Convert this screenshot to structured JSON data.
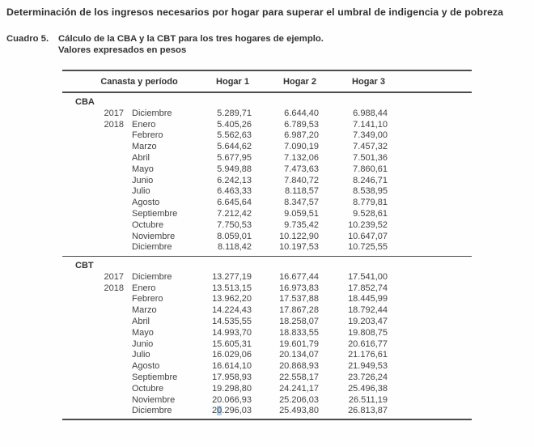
{
  "page_title": "Determinación de los ingresos necesarios por hogar para superar el umbral de indigencia y de pobreza",
  "caption": {
    "label": "Cuadro 5.",
    "title": "Cálculo de la CBA y la CBT para los tres hogares de ejemplo.",
    "subtitle": "Valores expresados en pesos"
  },
  "colors": {
    "selection_highlight": "#b3d2ec",
    "rule_color": "#4c4c4c"
  },
  "table": {
    "columns": [
      "Canasta y período",
      "Hogar 1",
      "Hogar 2",
      "Hogar 3"
    ],
    "sections": [
      {
        "name": "CBA",
        "rows": [
          {
            "year": "2017",
            "month": "Diciembre",
            "values": [
              "5.289,71",
              "6.644,40",
              "6.988,44"
            ]
          },
          {
            "year": "2018",
            "month": "Enero",
            "values": [
              "5.405,26",
              "6.789,53",
              "7.141,10"
            ]
          },
          {
            "year": "",
            "month": "Febrero",
            "values": [
              "5.562,63",
              "6.987,20",
              "7.349,00"
            ]
          },
          {
            "year": "",
            "month": "Marzo",
            "values": [
              "5.644,62",
              "7.090,19",
              "7.457,32"
            ]
          },
          {
            "year": "",
            "month": "Abril",
            "values": [
              "5.677,95",
              "7.132,06",
              "7.501,36"
            ]
          },
          {
            "year": "",
            "month": "Mayo",
            "values": [
              "5.949,88",
              "7.473,63",
              "7.860,61"
            ]
          },
          {
            "year": "",
            "month": "Junio",
            "values": [
              "6.242,13",
              "7.840,72",
              "8.246,71"
            ]
          },
          {
            "year": "",
            "month": "Julio",
            "values": [
              "6.463,33",
              "8.118,57",
              "8.538,95"
            ]
          },
          {
            "year": "",
            "month": "Agosto",
            "values": [
              "6.645,64",
              "8.347,57",
              "8.779,81"
            ]
          },
          {
            "year": "",
            "month": "Septiembre",
            "values": [
              "7.212,42",
              "9.059,51",
              "9.528,61"
            ]
          },
          {
            "year": "",
            "month": "Octubre",
            "values": [
              "7.750,53",
              "9.735,42",
              "10.239,52"
            ]
          },
          {
            "year": "",
            "month": "Noviembre",
            "values": [
              "8.059,01",
              "10.122,90",
              "10.647,07"
            ]
          },
          {
            "year": "",
            "month": "Diciembre",
            "values": [
              "8.118,42",
              "10.197,53",
              "10.725,55"
            ]
          }
        ]
      },
      {
        "name": "CBT",
        "rows": [
          {
            "year": "2017",
            "month": "Diciembre",
            "values": [
              "13.277,19",
              "16.677,44",
              "17.541,00"
            ]
          },
          {
            "year": "2018",
            "month": "Enero",
            "values": [
              "13.513,15",
              "16.973,83",
              "17.852,74"
            ]
          },
          {
            "year": "",
            "month": "Febrero",
            "values": [
              "13.962,20",
              "17.537,88",
              "18.445,99"
            ]
          },
          {
            "year": "",
            "month": "Marzo",
            "values": [
              "14.224,43",
              "17.867,28",
              "18.792,44"
            ]
          },
          {
            "year": "",
            "month": "Abril",
            "values": [
              "14.535,55",
              "18.258,07",
              "19.203,47"
            ]
          },
          {
            "year": "",
            "month": "Mayo",
            "values": [
              "14.993,70",
              "18.833,55",
              "19.808,75"
            ]
          },
          {
            "year": "",
            "month": "Junio",
            "values": [
              "15.605,31",
              "19.601,79",
              "20.616,77"
            ]
          },
          {
            "year": "",
            "month": "Julio",
            "values": [
              "16.029,06",
              "20.134,07",
              "21.176,61"
            ]
          },
          {
            "year": "",
            "month": "Agosto",
            "values": [
              "16.614,10",
              "20.868,93",
              "21.949,53"
            ]
          },
          {
            "year": "",
            "month": "Septiembre",
            "values": [
              "17.958,93",
              "22.558,17",
              "23.726,24"
            ]
          },
          {
            "year": "",
            "month": "Octubre",
            "values": [
              "19.298,80",
              "24.241,17",
              "25.496,38"
            ]
          },
          {
            "year": "",
            "month": "Noviembre",
            "values": [
              "20.066,93",
              "25.206,03",
              "26.511,19"
            ]
          },
          {
            "year": "",
            "month": "Diciembre",
            "values": [
              "20.296,03",
              "25.493,80",
              "26.813,87"
            ],
            "highlight": {
              "col": 0,
              "char": 1
            }
          }
        ]
      }
    ]
  }
}
